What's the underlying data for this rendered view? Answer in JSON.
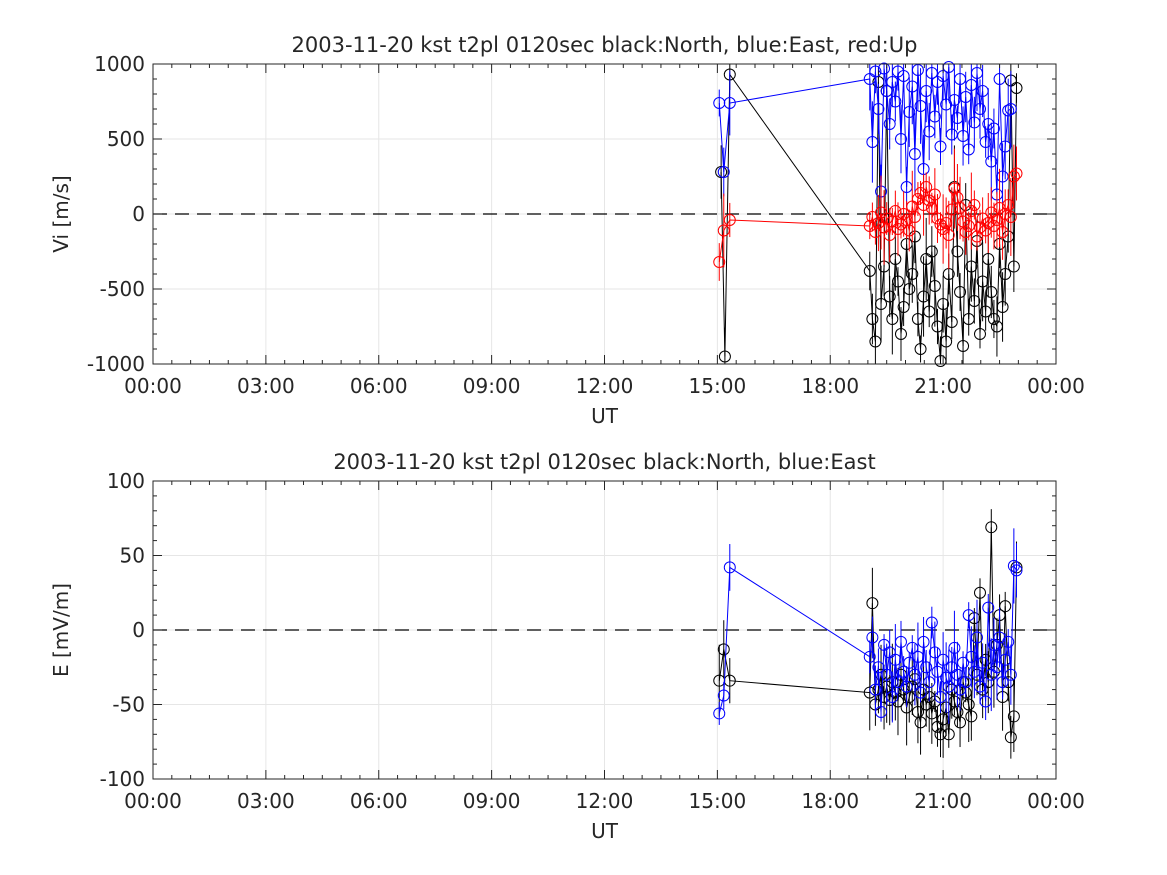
{
  "chart_data": [
    {
      "type": "scatter",
      "title": "2003-11-20 kst t2pl 0120sec black:North, blue:East, red:Up",
      "xlabel": "UT",
      "ylabel": "Vi [m/s]",
      "xlim_hours": [
        0,
        24
      ],
      "ylim": [
        -1000,
        1000
      ],
      "xticks": [
        "00:00",
        "03:00",
        "06:00",
        "09:00",
        "12:00",
        "15:00",
        "18:00",
        "21:00",
        "00:00"
      ],
      "yticks": [
        "-1000",
        "-500",
        "0",
        "500",
        "1000"
      ],
      "grid": true,
      "zero_line": "dashed",
      "series": [
        {
          "name": "North",
          "color": "#000000",
          "x": [
            15.1,
            15.2,
            15.33,
            19.05,
            19.12,
            19.2,
            19.28,
            19.35,
            19.43,
            19.5,
            19.58,
            19.65,
            19.73,
            19.8,
            19.88,
            19.95,
            20.03,
            20.1,
            20.18,
            20.25,
            20.33,
            20.4,
            20.48,
            20.55,
            20.63,
            20.7,
            20.78,
            20.85,
            20.93,
            21.0,
            21.08,
            21.15,
            21.23,
            21.3,
            21.38,
            21.45,
            21.53,
            21.6,
            21.68,
            21.75,
            21.83,
            21.9,
            21.98,
            22.05,
            22.13,
            22.2,
            22.28,
            22.35,
            22.43,
            22.5,
            22.58,
            22.65,
            22.73,
            22.8,
            22.88,
            22.95
          ],
          "y": [
            280,
            -950,
            930,
            -380,
            -700,
            -850,
            880,
            -600,
            -350,
            820,
            -550,
            -700,
            -300,
            -450,
            -800,
            -620,
            -200,
            -500,
            -400,
            -150,
            -700,
            -900,
            -550,
            -300,
            -650,
            -250,
            -480,
            -750,
            -980,
            -600,
            -850,
            -400,
            -720,
            180,
            -250,
            -520,
            -880,
            60,
            -700,
            -350,
            -580,
            -180,
            -800,
            -450,
            -650,
            -300,
            -520,
            -700,
            -750,
            -200,
            -620,
            -400,
            -150,
            890,
            -350,
            840
          ]
        },
        {
          "name": "East",
          "color": "#0000ff",
          "x": [
            15.05,
            15.17,
            15.33,
            19.05,
            19.12,
            19.2,
            19.28,
            19.35,
            19.43,
            19.5,
            19.58,
            19.65,
            19.73,
            19.8,
            19.88,
            19.95,
            20.03,
            20.1,
            20.18,
            20.25,
            20.33,
            20.4,
            20.48,
            20.55,
            20.63,
            20.7,
            20.78,
            20.85,
            20.93,
            21.0,
            21.08,
            21.15,
            21.23,
            21.3,
            21.38,
            21.45,
            21.53,
            21.6,
            21.68,
            21.75,
            21.83,
            21.9,
            21.98,
            22.05,
            22.13,
            22.2,
            22.28,
            22.35,
            22.43,
            22.5,
            22.58,
            22.65,
            22.73,
            22.8
          ],
          "y": [
            740,
            280,
            740,
            900,
            480,
            950,
            700,
            150,
            970,
            820,
            600,
            880,
            750,
            950,
            500,
            920,
            180,
            680,
            850,
            400,
            960,
            720,
            300,
            820,
            550,
            940,
            650,
            880,
            450,
            920,
            730,
            980,
            530,
            760,
            640,
            900,
            520,
            780,
            430,
            860,
            610,
            940,
            700,
            820,
            480,
            600,
            350,
            570,
            130,
            900,
            250,
            450,
            690,
            700
          ]
        },
        {
          "name": "Up",
          "color": "#ff0000",
          "x": [
            15.05,
            15.17,
            15.33,
            19.05,
            19.12,
            19.2,
            19.28,
            19.35,
            19.43,
            19.5,
            19.58,
            19.65,
            19.73,
            19.8,
            19.88,
            19.95,
            20.03,
            20.1,
            20.18,
            20.25,
            20.33,
            20.4,
            20.48,
            20.55,
            20.63,
            20.7,
            20.78,
            20.85,
            20.93,
            21.0,
            21.08,
            21.15,
            21.23,
            21.3,
            21.38,
            21.45,
            21.53,
            21.6,
            21.68,
            21.75,
            21.83,
            21.9,
            21.98,
            22.05,
            22.13,
            22.2,
            22.28,
            22.35,
            22.43,
            22.5,
            22.58,
            22.65,
            22.73,
            22.8,
            22.88,
            22.95
          ],
          "y": [
            -320,
            -110,
            -40,
            -80,
            -20,
            -120,
            -60,
            10,
            -90,
            -30,
            -140,
            -50,
            20,
            -100,
            -70,
            0,
            -40,
            -110,
            50,
            -20,
            100,
            140,
            60,
            180,
            90,
            40,
            130,
            -30,
            -70,
            -100,
            -60,
            -140,
            30,
            170,
            110,
            40,
            -50,
            -120,
            -80,
            20,
            60,
            -150,
            -90,
            -30,
            -110,
            -60,
            10,
            -80,
            -40,
            40,
            -120,
            0,
            60,
            -20,
            250,
            270
          ]
        }
      ]
    },
    {
      "type": "scatter",
      "title": "2003-11-20 kst t2pl 0120sec black:North, blue:East",
      "xlabel": "UT",
      "ylabel": "E [mV/m]",
      "xlim_hours": [
        0,
        24
      ],
      "ylim": [
        -100,
        100
      ],
      "xticks": [
        "00:00",
        "03:00",
        "06:00",
        "09:00",
        "12:00",
        "15:00",
        "18:00",
        "21:00",
        "00:00"
      ],
      "yticks": [
        "-100",
        "-50",
        "0",
        "50",
        "100"
      ],
      "grid": true,
      "zero_line": "dashed",
      "series": [
        {
          "name": "North",
          "color": "#000000",
          "x": [
            15.05,
            15.17,
            15.33,
            19.05,
            19.12,
            19.2,
            19.28,
            19.35,
            19.43,
            19.5,
            19.58,
            19.65,
            19.73,
            19.8,
            19.88,
            19.95,
            20.03,
            20.1,
            20.18,
            20.25,
            20.33,
            20.4,
            20.48,
            20.55,
            20.63,
            20.7,
            20.78,
            20.85,
            20.93,
            21.0,
            21.08,
            21.15,
            21.23,
            21.3,
            21.38,
            21.45,
            21.53,
            21.6,
            21.68,
            21.75,
            21.83,
            21.9,
            21.98,
            22.05,
            22.13,
            22.2,
            22.28,
            22.35,
            22.43,
            22.5,
            22.58,
            22.65,
            22.73,
            22.8,
            22.88,
            22.95
          ],
          "y": [
            -34,
            -13,
            -34,
            -42,
            18,
            -50,
            -40,
            -30,
            -45,
            -38,
            -47,
            -35,
            -42,
            -48,
            -30,
            -40,
            -52,
            -45,
            -38,
            -33,
            -55,
            -62,
            -40,
            -50,
            -45,
            -56,
            -48,
            -65,
            -70,
            -60,
            -52,
            -70,
            -40,
            -48,
            -55,
            -62,
            -35,
            -42,
            -50,
            -58,
            8,
            -30,
            25,
            -40,
            -20,
            -35,
            69,
            -28,
            -10,
            10,
            -45,
            16,
            -35,
            -72,
            -58,
            42
          ]
        },
        {
          "name": "East",
          "color": "#0000ff",
          "x": [
            15.05,
            15.17,
            15.33,
            19.05,
            19.12,
            19.2,
            19.28,
            19.35,
            19.43,
            19.5,
            19.58,
            19.65,
            19.73,
            19.8,
            19.88,
            19.95,
            20.03,
            20.1,
            20.18,
            20.25,
            20.33,
            20.4,
            20.48,
            20.55,
            20.63,
            20.7,
            20.78,
            20.85,
            20.93,
            21.0,
            21.08,
            21.15,
            21.23,
            21.3,
            21.38,
            21.45,
            21.53,
            21.6,
            21.68,
            21.75,
            21.83,
            21.9,
            21.98,
            22.05,
            22.13,
            22.2,
            22.28,
            22.35,
            22.43,
            22.5,
            22.58,
            22.65,
            22.73,
            22.8,
            22.88,
            22.95
          ],
          "y": [
            -56,
            -44,
            42,
            -18,
            -5,
            -40,
            -25,
            -55,
            -10,
            -30,
            -15,
            -45,
            -20,
            -35,
            -8,
            -28,
            -38,
            -22,
            -12,
            -30,
            -18,
            -42,
            -8,
            -25,
            -35,
            5,
            -15,
            -28,
            -45,
            -20,
            -32,
            -38,
            -25,
            -12,
            -30,
            -40,
            -22,
            -35,
            10,
            -18,
            -28,
            -5,
            -38,
            -22,
            -48,
            15,
            -30,
            -10,
            -25,
            -5,
            -35,
            -20,
            -8,
            -30,
            43,
            40
          ]
        }
      ]
    }
  ]
}
